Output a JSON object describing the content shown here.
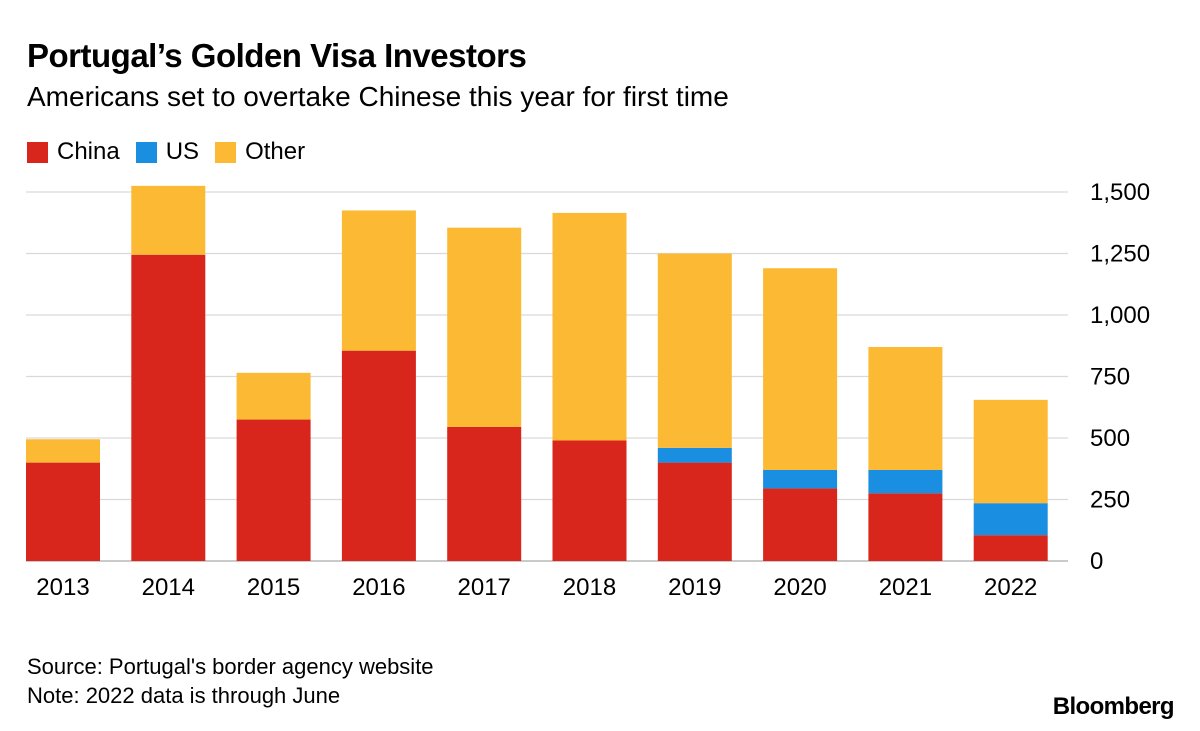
{
  "header": {
    "title": "Portugal’s Golden Visa Investors",
    "subtitle": "Americans set to overtake Chinese this year for first time"
  },
  "legend": [
    {
      "label": "China",
      "color": "#d9261c"
    },
    {
      "label": "US",
      "color": "#1a8ee0"
    },
    {
      "label": "Other",
      "color": "#fbb934"
    }
  ],
  "chart_data": {
    "type": "bar",
    "stacked": true,
    "title": "Portugal’s Golden Visa Investors",
    "subtitle": "Americans set to overtake Chinese this year for first time",
    "categories": [
      "2013",
      "2014",
      "2015",
      "2016",
      "2017",
      "2018",
      "2019",
      "2020",
      "2021",
      "2022"
    ],
    "series": [
      {
        "name": "China",
        "color": "#d9261c",
        "values": [
          400,
          1245,
          575,
          855,
          545,
          490,
          400,
          295,
          275,
          105
        ]
      },
      {
        "name": "US",
        "color": "#1a8ee0",
        "values": [
          0,
          0,
          0,
          0,
          0,
          0,
          60,
          75,
          95,
          130
        ]
      },
      {
        "name": "Other",
        "color": "#fbb934",
        "values": [
          95,
          280,
          190,
          570,
          810,
          925,
          790,
          820,
          500,
          420
        ]
      }
    ],
    "yticks": [
      0,
      250,
      500,
      750,
      1000,
      1250,
      1500
    ],
    "ytick_labels": [
      "0",
      "250",
      "500",
      "750",
      "1,000",
      "1,250",
      "1,500"
    ],
    "ylim": [
      0,
      1500
    ],
    "xlabel": "",
    "ylabel": "",
    "grid": true,
    "legend_position": "top-left"
  },
  "footer": {
    "source": "Source: Portugal's border agency website",
    "note": "Note: 2022 data is through June"
  },
  "brand": "Bloomberg"
}
